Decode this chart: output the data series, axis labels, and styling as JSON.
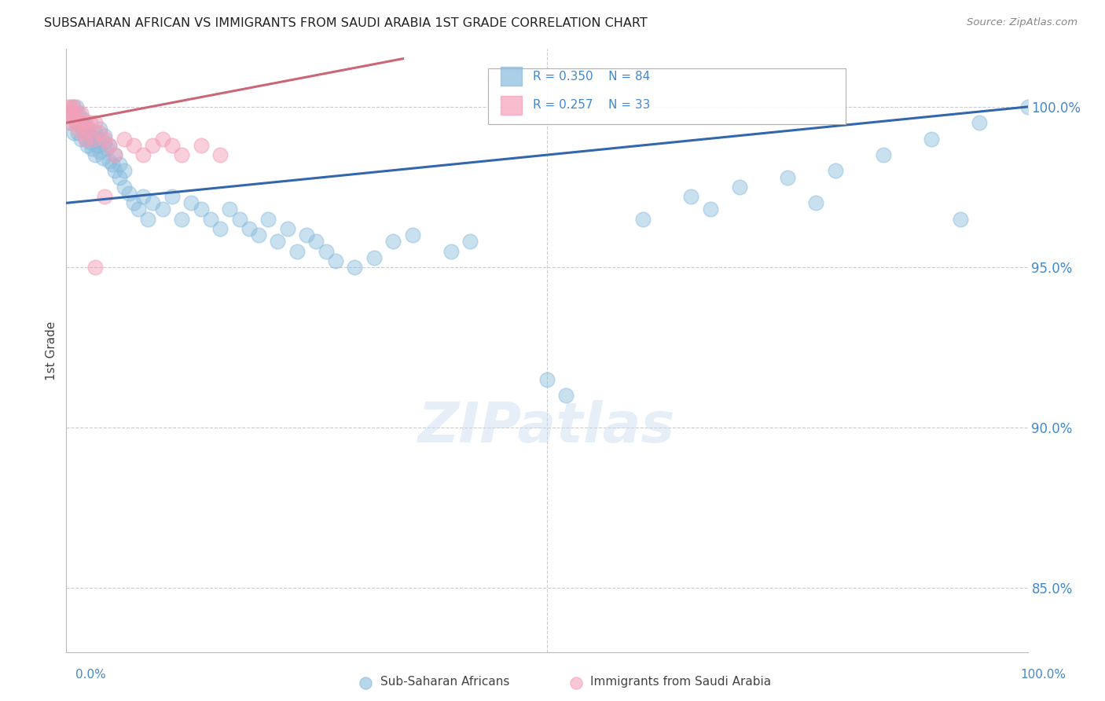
{
  "title": "SUBSAHARAN AFRICAN VS IMMIGRANTS FROM SAUDI ARABIA 1ST GRADE CORRELATION CHART",
  "source": "Source: ZipAtlas.com",
  "ylabel": "1st Grade",
  "ytick_vals": [
    85.0,
    90.0,
    95.0,
    100.0
  ],
  "ytick_labels": [
    "85.0%",
    "90.0%",
    "95.0%",
    "100.0%"
  ],
  "xlim": [
    0.0,
    100.0
  ],
  "ylim": [
    83.0,
    101.8
  ],
  "legend_blue_label": "Sub-Saharan Africans",
  "legend_pink_label": "Immigrants from Saudi Arabia",
  "R_blue": 0.35,
  "N_blue": 84,
  "R_pink": 0.257,
  "N_pink": 33,
  "blue_color": "#88bbdd",
  "pink_color": "#f4a0b8",
  "blue_line_color": "#3366aa",
  "pink_line_color": "#cc6677",
  "watermark_text": "ZIPatlas",
  "blue_line_x0": 0.0,
  "blue_line_y0": 97.0,
  "blue_line_x1": 100.0,
  "blue_line_y1": 100.0,
  "pink_line_x0": 0.0,
  "pink_line_y0": 99.5,
  "pink_line_x1": 35.0,
  "pink_line_y1": 101.5,
  "blue_scatter_x": [
    0.3,
    0.5,
    0.7,
    0.8,
    1.0,
    1.0,
    1.2,
    1.3,
    1.5,
    1.5,
    1.7,
    1.8,
    2.0,
    2.0,
    2.2,
    2.3,
    2.5,
    2.5,
    2.7,
    2.8,
    3.0,
    3.0,
    3.2,
    3.3,
    3.5,
    3.5,
    3.8,
    4.0,
    4.0,
    4.2,
    4.5,
    4.5,
    4.8,
    5.0,
    5.0,
    5.5,
    5.5,
    6.0,
    6.0,
    6.5,
    7.0,
    7.5,
    8.0,
    8.5,
    9.0,
    10.0,
    11.0,
    12.0,
    13.0,
    14.0,
    15.0,
    16.0,
    17.0,
    18.0,
    19.0,
    20.0,
    21.0,
    22.0,
    23.0,
    24.0,
    25.0,
    26.0,
    27.0,
    28.0,
    30.0,
    32.0,
    34.0,
    36.0,
    40.0,
    42.0,
    50.0,
    52.0,
    60.0,
    65.0,
    70.0,
    75.0,
    80.0,
    85.0,
    90.0,
    95.0,
    100.0,
    67.0,
    78.0,
    93.0
  ],
  "blue_scatter_y": [
    99.5,
    99.8,
    100.0,
    99.2,
    99.5,
    100.0,
    99.2,
    99.8,
    99.0,
    99.5,
    99.3,
    99.6,
    99.0,
    99.4,
    98.8,
    99.2,
    98.9,
    99.1,
    98.7,
    99.0,
    98.5,
    99.2,
    98.8,
    99.0,
    98.6,
    99.3,
    98.4,
    98.9,
    99.1,
    98.7,
    98.3,
    98.8,
    98.2,
    98.0,
    98.5,
    97.8,
    98.2,
    97.5,
    98.0,
    97.3,
    97.0,
    96.8,
    97.2,
    96.5,
    97.0,
    96.8,
    97.2,
    96.5,
    97.0,
    96.8,
    96.5,
    96.2,
    96.8,
    96.5,
    96.2,
    96.0,
    96.5,
    95.8,
    96.2,
    95.5,
    96.0,
    95.8,
    95.5,
    95.2,
    95.0,
    95.3,
    95.8,
    96.0,
    95.5,
    95.8,
    91.5,
    91.0,
    96.5,
    97.2,
    97.5,
    97.8,
    98.0,
    98.5,
    99.0,
    99.5,
    100.0,
    96.8,
    97.0,
    96.5
  ],
  "pink_scatter_x": [
    0.2,
    0.3,
    0.5,
    0.5,
    0.7,
    0.8,
    1.0,
    1.0,
    1.2,
    1.5,
    1.5,
    1.8,
    2.0,
    2.0,
    2.2,
    2.5,
    2.8,
    3.0,
    3.5,
    4.0,
    4.5,
    5.0,
    6.0,
    7.0,
    8.0,
    9.0,
    10.0,
    11.0,
    12.0,
    14.0,
    16.0,
    4.0,
    3.0
  ],
  "pink_scatter_y": [
    100.0,
    99.8,
    100.0,
    99.5,
    99.7,
    100.0,
    99.5,
    99.8,
    99.3,
    99.5,
    99.8,
    99.2,
    99.5,
    99.0,
    99.3,
    99.5,
    99.0,
    99.5,
    99.2,
    99.0,
    98.8,
    98.5,
    99.0,
    98.8,
    98.5,
    98.8,
    99.0,
    98.8,
    98.5,
    98.8,
    98.5,
    97.2,
    95.0
  ]
}
